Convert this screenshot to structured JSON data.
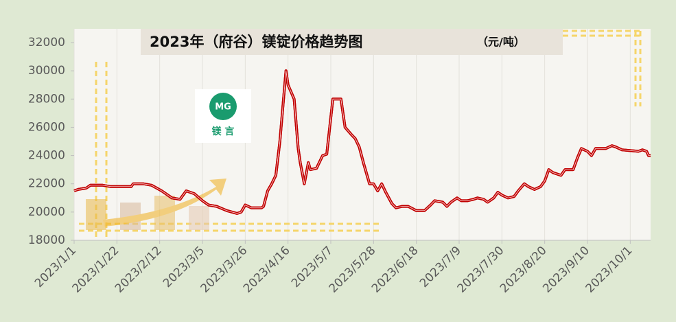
{
  "chart_data": {
    "type": "line",
    "title": "2023年（府谷）镁锭价格趋势图",
    "unit": "（元/吨）",
    "logo": {
      "mark": "MG",
      "name": "镁 言"
    },
    "x": [
      "2023/1/1",
      "2023/1/3",
      "2023/1/7",
      "2023/1/9",
      "2023/1/15",
      "2023/1/19",
      "2023/1/29",
      "2023/1/30",
      "2023/2/4",
      "2023/2/8",
      "2023/2/13",
      "2023/2/18",
      "2023/2/22",
      "2023/2/25",
      "2023/3/1",
      "2023/3/5",
      "2023/3/8",
      "2023/3/12",
      "2023/3/17",
      "2023/3/22",
      "2023/3/24",
      "2023/3/26",
      "2023/3/29",
      "2023/4/3",
      "2023/4/4",
      "2023/4/6",
      "2023/4/8",
      "2023/4/10",
      "2023/4/12",
      "2023/4/15",
      "2023/4/16",
      "2023/4/19",
      "2023/4/21",
      "2023/4/22",
      "2023/4/24",
      "2023/4/26",
      "2023/4/27",
      "2023/4/30",
      "2023/5/3",
      "2023/5/5",
      "2023/5/8",
      "2023/5/12",
      "2023/5/14",
      "2023/5/17",
      "2023/5/19",
      "2023/5/21",
      "2023/5/23",
      "2023/5/26",
      "2023/5/28",
      "2023/5/30",
      "2023/6/1",
      "2023/6/3",
      "2023/6/6",
      "2023/6/8",
      "2023/6/11",
      "2023/6/14",
      "2023/6/18",
      "2023/6/22",
      "2023/6/25",
      "2023/6/27",
      "2023/7/1",
      "2023/7/3",
      "2023/7/5",
      "2023/7/8",
      "2023/7/10",
      "2023/7/13",
      "2023/7/16",
      "2023/7/18",
      "2023/7/21",
      "2023/7/23",
      "2023/7/26",
      "2023/7/28",
      "2023/7/30",
      "2023/8/2",
      "2023/8/5",
      "2023/8/7",
      "2023/8/10",
      "2023/8/12",
      "2023/8/15",
      "2023/8/18",
      "2023/8/20",
      "2023/8/22",
      "2023/8/24",
      "2023/8/28",
      "2023/8/30",
      "2023/9/3",
      "2023/9/5",
      "2023/9/7",
      "2023/9/10",
      "2023/9/12",
      "2023/9/14",
      "2023/9/19",
      "2023/9/22",
      "2023/9/24",
      "2023/9/27",
      "2023/10/5",
      "2023/10/7",
      "2023/10/9",
      "2023/10/10",
      "2023/10/11"
    ],
    "series": [
      {
        "name": "镁锭价格",
        "color": "#c00000",
        "values": [
          21500,
          21600,
          21700,
          21900,
          21900,
          21800,
          21800,
          22000,
          22000,
          21900,
          21500,
          21000,
          20900,
          21500,
          21300,
          20800,
          20500,
          20400,
          20100,
          19900,
          20000,
          20500,
          20300,
          20300,
          20400,
          21500,
          22000,
          22600,
          25000,
          30000,
          29000,
          28000,
          24500,
          23500,
          22000,
          23500,
          23000,
          23100,
          24000,
          24100,
          28000,
          28000,
          26000,
          25500,
          25200,
          24600,
          23500,
          22000,
          22000,
          21500,
          22000,
          21400,
          20600,
          20300,
          20400,
          20400,
          20100,
          20100,
          20500,
          20800,
          20700,
          20400,
          20700,
          21000,
          20800,
          20800,
          20900,
          21000,
          20900,
          20700,
          21000,
          21400,
          21200,
          21000,
          21100,
          21500,
          22000,
          21800,
          21600,
          21800,
          22200,
          23000,
          22800,
          22600,
          23000,
          23000,
          23800,
          24500,
          24300,
          24000,
          24500,
          24500,
          24700,
          24600,
          24400,
          24300,
          24400,
          24300,
          24000,
          24000
        ]
      }
    ],
    "xlim": [
      "2023/1/1",
      "2023/10/11"
    ],
    "xticks": [
      "2023/1/1",
      "2023/1/22",
      "2023/2/12",
      "2023/3/5",
      "2023/3/26",
      "2023/4/16",
      "2023/5/7",
      "2023/5/28",
      "2023/6/18",
      "2023/7/9",
      "2023/7/30",
      "2023/8/20",
      "2023/9/10",
      "2023/10/1"
    ],
    "ylim": [
      18000,
      32000
    ],
    "yticks": [
      18000,
      20000,
      22000,
      24000,
      26000,
      28000,
      30000,
      32000
    ],
    "grid": "x"
  }
}
